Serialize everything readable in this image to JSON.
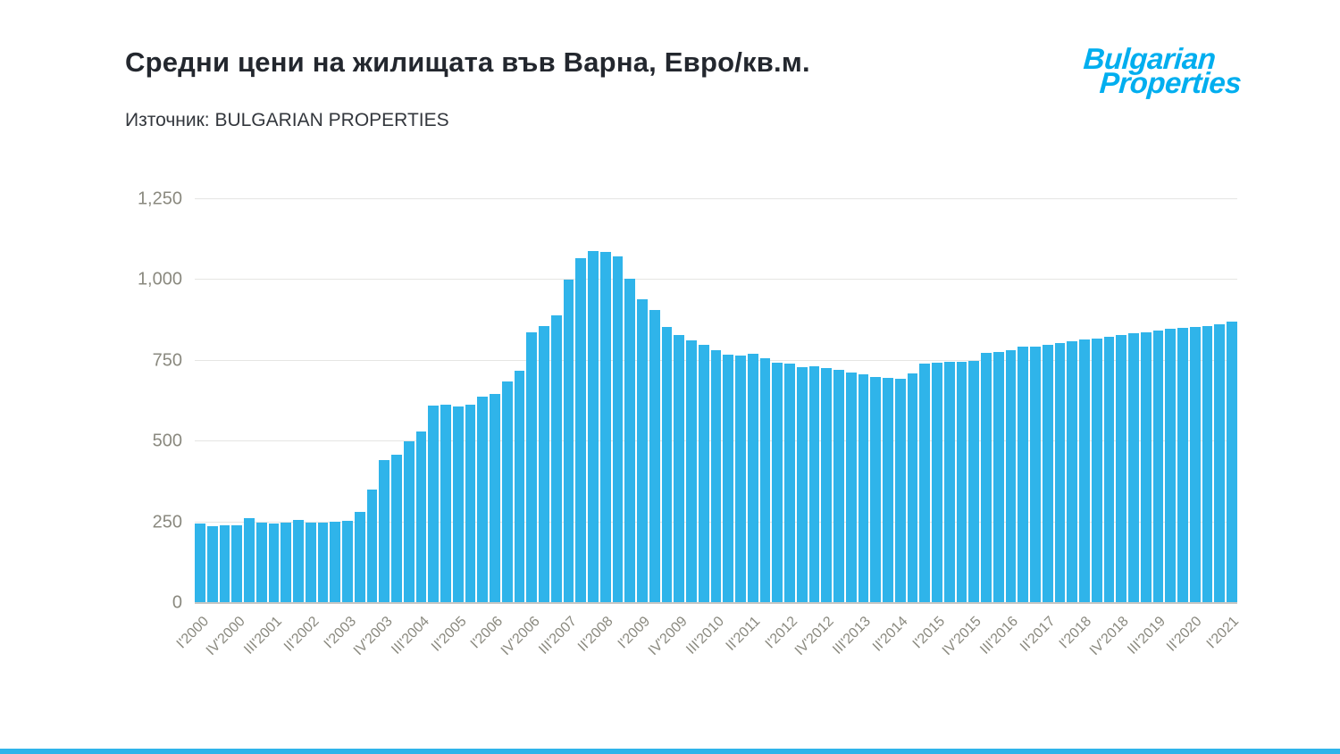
{
  "header": {
    "title": "Средни цени на жилищата във Варна, Евро/кв.м.",
    "source": "Източник: BULGARIAN PROPERTIES",
    "logo_line1": "Bulgarian",
    "logo_line2": "Properties"
  },
  "colors": {
    "bar": "#2FB4EA",
    "logo": "#00AEEF",
    "title": "#23272E",
    "source": "#33373D",
    "axis": "#8A897F",
    "gridline": "#E5E5E3",
    "baseline": "#C6C6C3",
    "accent": "#2FB4EA"
  },
  "chart_data": {
    "type": "bar",
    "title": "Средни цени на жилищата във Варна, Евро/кв.м.",
    "source": "Източник: BULGARIAN PROPERTIES",
    "ylim": [
      0,
      1250
    ],
    "grid": true,
    "y_ticks": [
      {
        "value": 0,
        "label": "0"
      },
      {
        "value": 250,
        "label": "250"
      },
      {
        "value": 500,
        "label": "500"
      },
      {
        "value": 750,
        "label": "750"
      },
      {
        "value": 1000,
        "label": "1,000"
      },
      {
        "value": 1250,
        "label": "1,250"
      }
    ],
    "x_tick_step": 3,
    "x_tick_labels": [
      "I'2000",
      "IV'2000",
      "III'2001",
      "II'2002",
      "I'2003",
      "IV'2003",
      "III'2004",
      "II'2005",
      "I'2006",
      "IV'2006",
      "III'2007",
      "II'2008",
      "I'2009",
      "IV'2009",
      "III'2010",
      "II'2011",
      "I'2012",
      "IV'2012",
      "III'2013",
      "II'2014",
      "I'2015",
      "IV'2015",
      "III'2016",
      "II'2017",
      "I'2018",
      "IV'2018",
      "III'2019",
      "II'2020",
      "I'2021"
    ],
    "values": [
      245,
      237,
      240,
      242,
      262,
      250,
      246,
      250,
      257,
      250,
      250,
      252,
      255,
      283,
      350,
      443,
      460,
      500,
      530,
      610,
      615,
      608,
      614,
      640,
      648,
      685,
      720,
      838,
      858,
      890,
      1000,
      1068,
      1090,
      1088,
      1072,
      1005,
      940,
      908,
      855,
      830,
      812,
      798,
      782,
      768,
      765,
      772,
      758,
      745,
      740,
      730,
      733,
      728,
      722,
      713,
      708,
      700,
      698,
      695,
      712,
      740,
      745,
      748,
      748,
      750,
      775,
      778,
      782,
      793,
      795,
      800,
      805,
      810,
      815,
      818,
      824,
      830,
      834,
      838,
      843,
      848,
      852,
      855,
      858,
      862,
      870
    ]
  }
}
